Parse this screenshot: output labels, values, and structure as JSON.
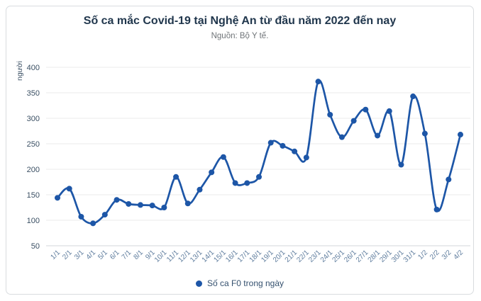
{
  "chart_data": {
    "type": "line",
    "title": "Số ca mắc Covid-19 tại Nghệ An từ đầu năm 2022 đến nay",
    "subtitle": "Nguồn: Bộ Y tế.",
    "ylabel": "người",
    "xlabel": "",
    "ylim": [
      50,
      400
    ],
    "yticks": [
      400,
      350,
      300,
      250,
      200,
      150,
      100,
      50
    ],
    "grid": true,
    "legend_position": "bottom",
    "categories": [
      "1/1",
      "2/1",
      "3/1",
      "4/1",
      "5/1",
      "6/1",
      "7/1",
      "8/1",
      "9/1",
      "10/1",
      "11/1",
      "12/1",
      "13/1",
      "14/1",
      "15/1",
      "16/1",
      "17/1",
      "18/1",
      "19/1",
      "20/1",
      "21/1",
      "22/1",
      "23/1",
      "24/1",
      "25/1",
      "26/1",
      "27/1",
      "28/1",
      "29/1",
      "30/1",
      "31/1",
      "1/2",
      "2/2",
      "3/2",
      "4/2"
    ],
    "series": [
      {
        "name": "Số ca F0 trong ngày",
        "values": [
          144,
          162,
          107,
          94,
          111,
          140,
          132,
          130,
          129,
          125,
          185,
          133,
          160,
          194,
          224,
          173,
          173,
          185,
          252,
          246,
          235,
          223,
          372,
          307,
          263,
          295,
          317,
          266,
          314,
          209,
          343,
          270,
          121,
          180,
          268
        ]
      }
    ]
  },
  "colors": {
    "line": "#1d56a7",
    "marker": "#1d56a7",
    "legend_dot": "#1d56a7",
    "grid": "#ebebeb",
    "axis_line": "#d3d7db",
    "ytick_text": "#3a4f63",
    "xtick_text": "#5f7d9e",
    "ylabel_text": "#3a4f63"
  }
}
